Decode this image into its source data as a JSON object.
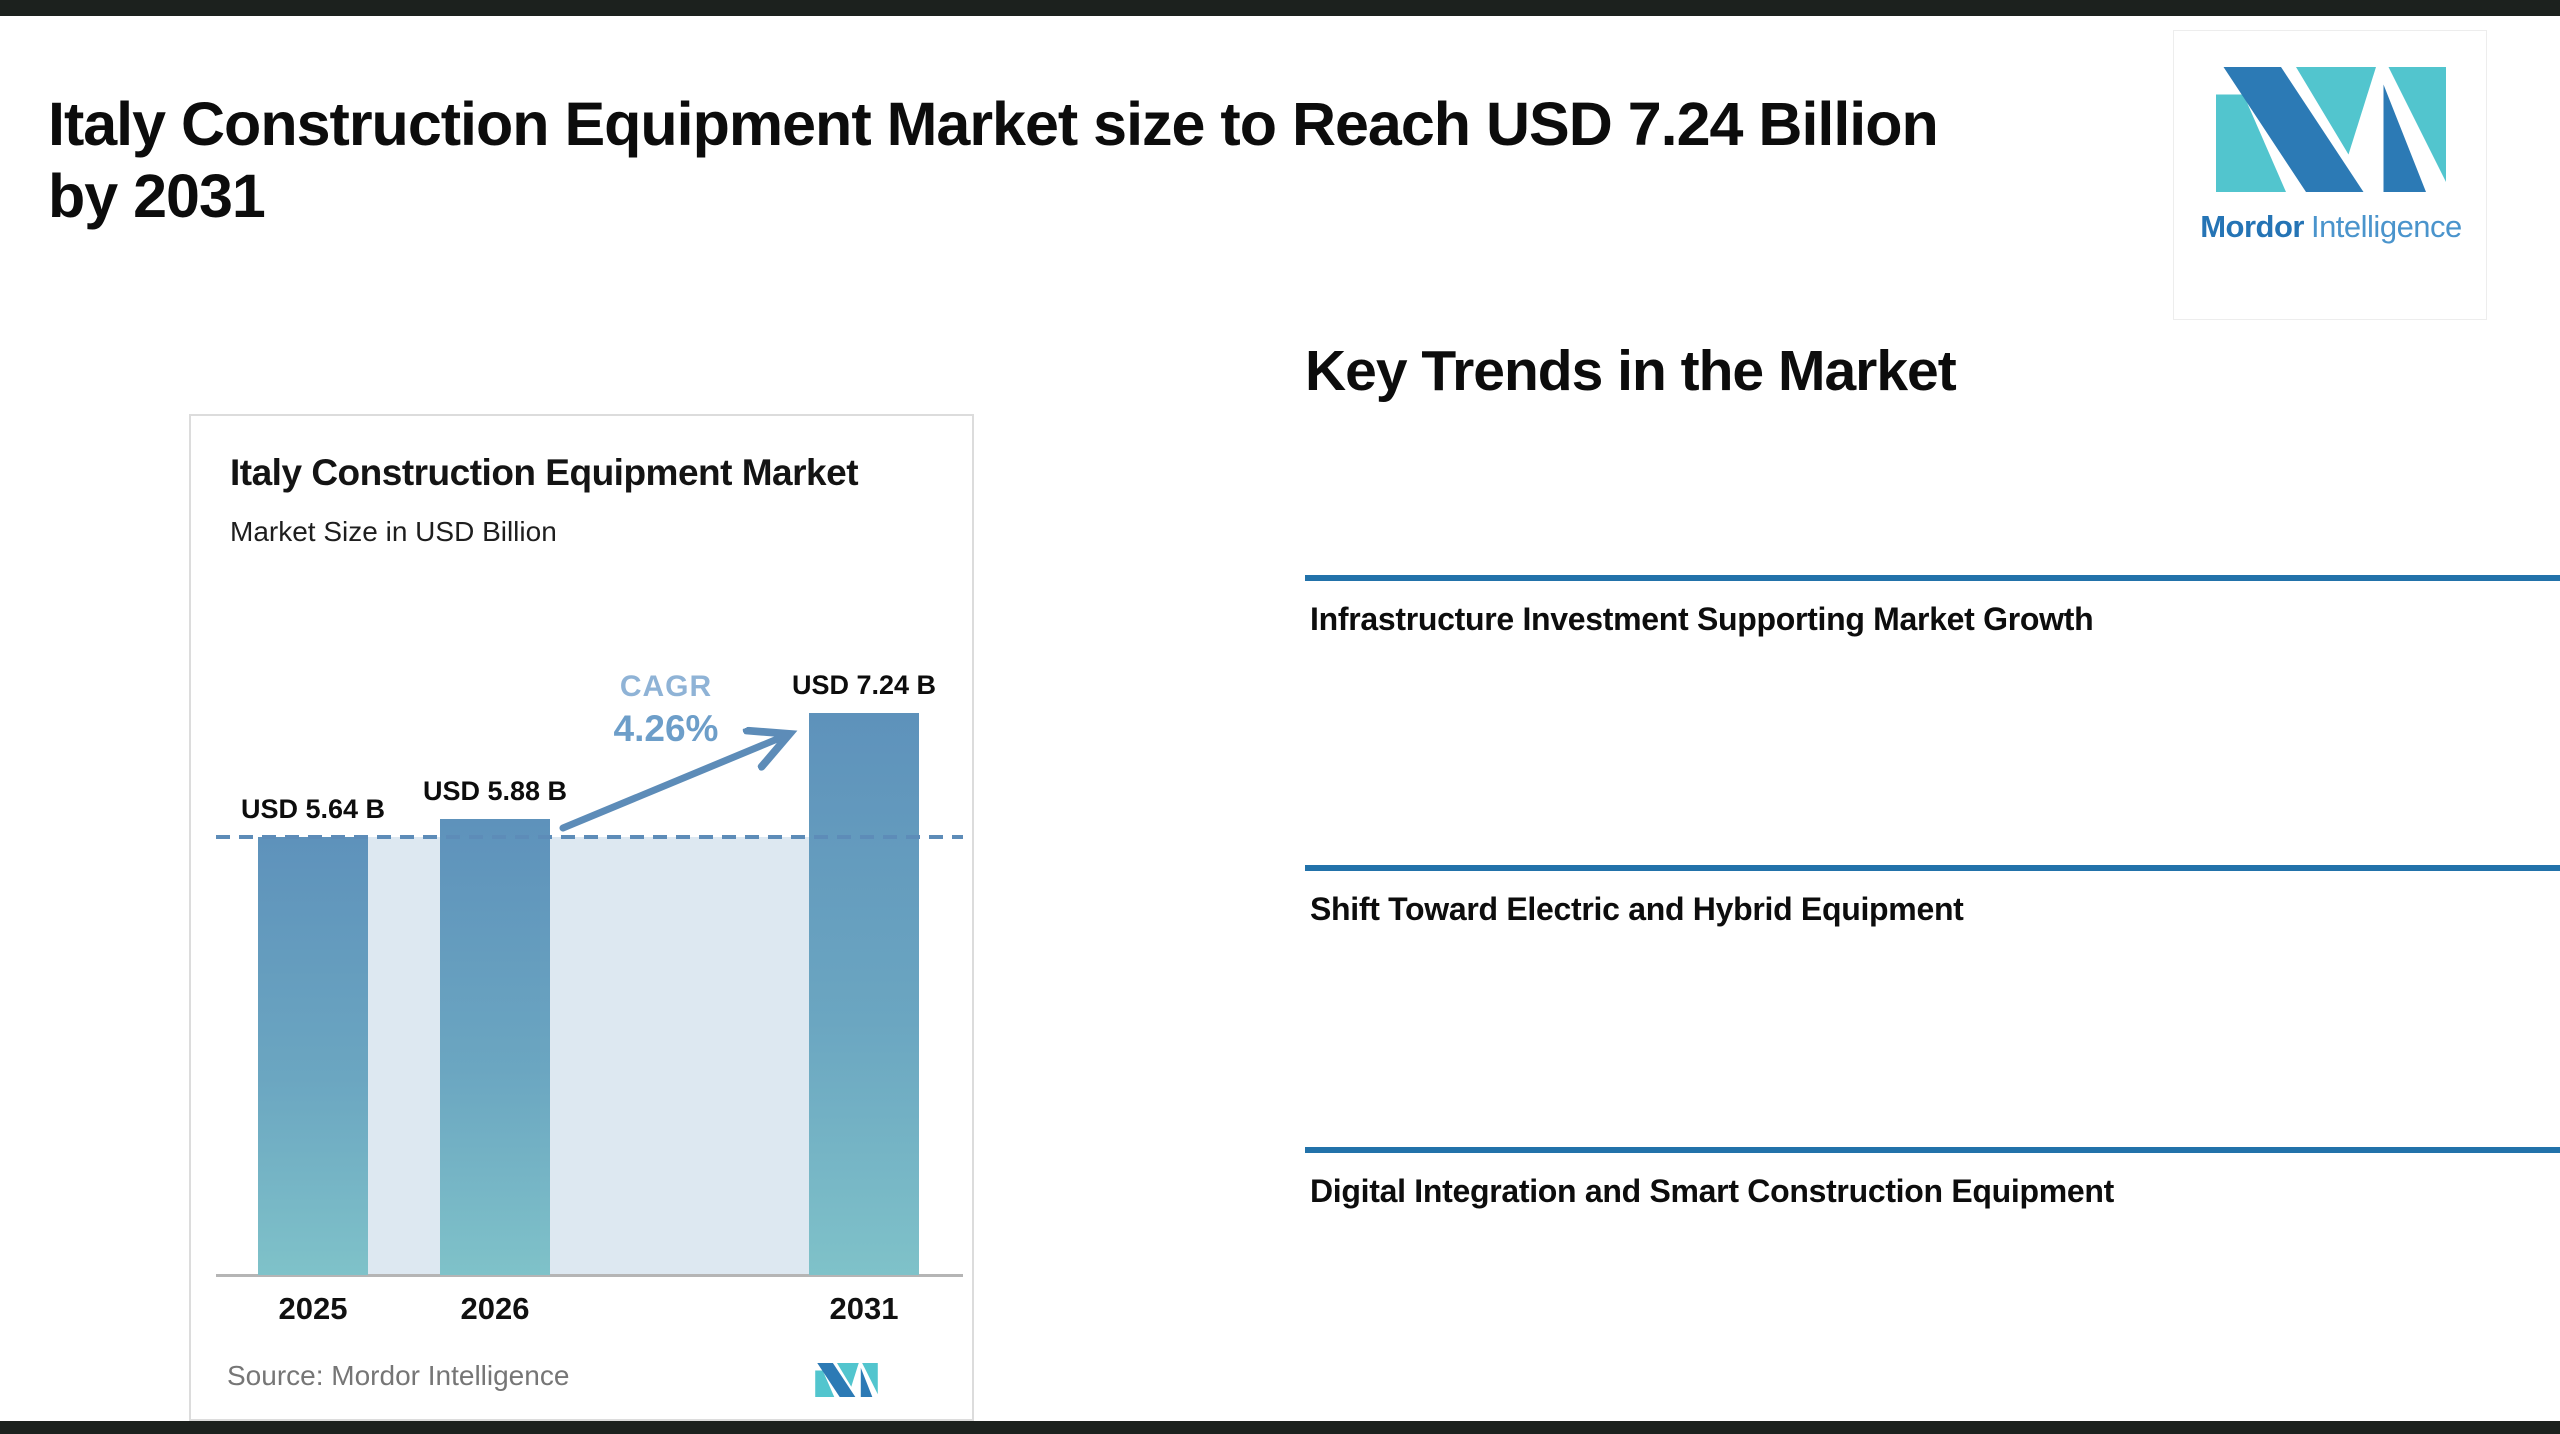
{
  "header": {
    "title_line1": "Italy Construction Equipment Market size to Reach USD 7.24 Billion",
    "title_line2": "by 2031"
  },
  "brand": {
    "name_bold": "Mordor",
    "name_light": "Intelligence"
  },
  "chart_card": {
    "title": "Italy Construction Equipment Market",
    "subtitle": "Market Size in USD Billion",
    "cagr_label": "CAGR",
    "cagr_value": "4.26%",
    "source": "Source: Mordor Intelligence"
  },
  "chart_data": {
    "type": "bar",
    "title": "Italy Construction Equipment Market",
    "subtitle": "Market Size in USD Billion",
    "unit": "USD Billion",
    "categories": [
      "2025",
      "2026",
      "2031"
    ],
    "values": [
      5.64,
      5.88,
      7.24
    ],
    "bar_labels": [
      "USD 5.64 B",
      "USD 5.88 B",
      "USD 7.24 B"
    ],
    "cagr_percent": 4.26,
    "dashed_reference_value": 5.64,
    "ylim": [
      0,
      8
    ],
    "grid": "off",
    "legend": "none",
    "annotations": [
      "CAGR",
      "4.26%",
      "growth arrow from 2026 bar to 2031 bar"
    ]
  },
  "trends": {
    "heading": "Key Trends in the Market",
    "items": [
      {
        "title": "Infrastructure Investment Supporting Market Growth"
      },
      {
        "title": "Shift Toward Electric and Hybrid Equipment"
      },
      {
        "title": "Digital Integration and Smart Construction Equipment"
      }
    ]
  },
  "icons": {
    "logo_mark": "mordor-intelligence-logo-mark",
    "mini_logo_mark": "mordor-intelligence-logo-mark-small"
  },
  "colors": {
    "strip": "#1c211e",
    "accent-blue": "#2272aa",
    "bar-top": "#5e92bb",
    "bar-mid": "#6ba6c1",
    "bar-bottom": "#7fc2c9",
    "backdrop": "#dde8f1",
    "dash-blue": "#5d8cb8",
    "cagr-light": "#8fb3d6",
    "cagr-value": "#6d9ec9",
    "baseline-gray": "#b5b5b5",
    "source-gray": "#767676",
    "logo-blue": "#2574b5",
    "logo-light-blue": "#4a94cc",
    "logo-teal": "#52c5ce"
  }
}
